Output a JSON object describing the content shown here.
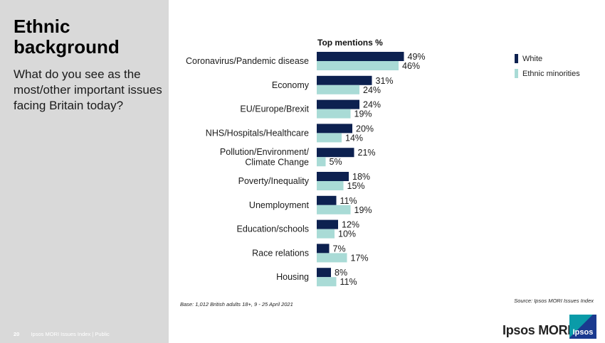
{
  "left_panel": {
    "title": "Ethnic background",
    "subtitle": "What do you see as the most/other important issues facing Britain today?",
    "page_number": "20",
    "footer": "Ipsos MORI Issues Index | Public"
  },
  "colors": {
    "white": "#0d2150",
    "ethnic_minorities": "#a9dbd6",
    "panel": "#d9d9d9"
  },
  "chart_data": {
    "type": "bar",
    "orientation": "horizontal",
    "title": "Top mentions %",
    "categories": [
      "Coronavirus/Pandemic disease",
      "Economy",
      "EU/Europe/Brexit",
      "NHS/Hospitals/Healthcare",
      "Pollution/Environment/ Climate Change",
      "Poverty/Inequality",
      "Unemployment",
      "Education/schools",
      "Race relations",
      "Housing"
    ],
    "series": [
      {
        "name": "White",
        "values": [
          49,
          31,
          24,
          20,
          21,
          18,
          11,
          12,
          7,
          8
        ]
      },
      {
        "name": "Ethnic minorities",
        "values": [
          46,
          24,
          19,
          14,
          5,
          15,
          19,
          10,
          17,
          11
        ]
      }
    ],
    "value_suffix": "%",
    "legend_position": "top-right",
    "grid": false
  },
  "notes": {
    "base": "Base: 1,012 British adults 18+, 9 - 25 April 2021",
    "source": "Source: Ipsos MORI Issues Index"
  },
  "brand": {
    "name": "Ipsos MORI",
    "logo_text": "Ipsos"
  }
}
